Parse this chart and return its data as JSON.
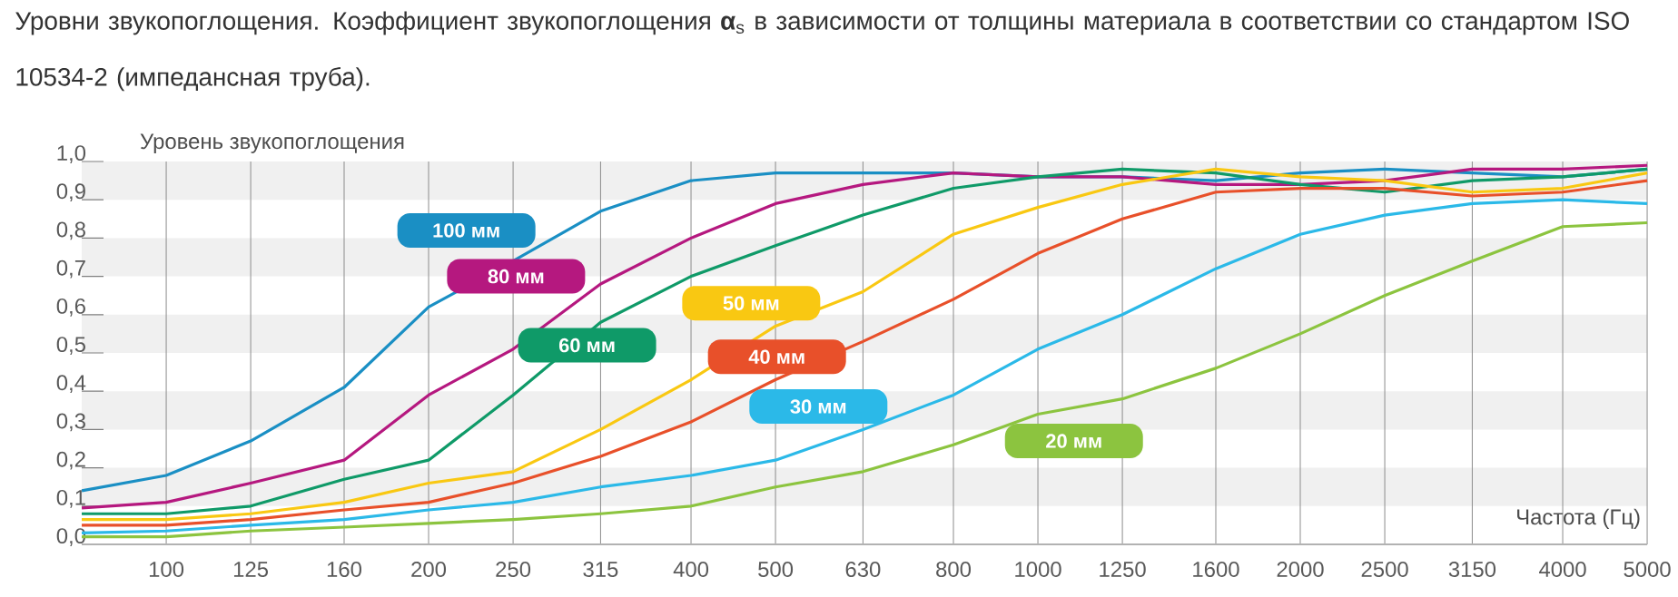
{
  "chart_data": {
    "type": "line",
    "title": "Уровни звукопоглощения. Коэффициент звукопоглощения **α**$_{s}$ в зависимости от толщины материала в соответствии со стандартом ISO 10534-2 (импедансная труба).",
    "xlabel": "Частота (Гц)",
    "ylabel": "Уровень звукопоглощения",
    "log": "x",
    "x": [
      80,
      100,
      125,
      160,
      200,
      250,
      315,
      400,
      500,
      630,
      800,
      1000,
      1250,
      1600,
      2000,
      2500,
      3150,
      4000,
      5000
    ],
    "xlim": [
      80,
      5000
    ],
    "xticks": [
      100,
      125,
      160,
      200,
      250,
      315,
      400,
      500,
      630,
      800,
      1000,
      1250,
      1600,
      2000,
      2500,
      3150,
      4000,
      5000
    ],
    "ylim": [
      0,
      1
    ],
    "yticks": [
      {
        "value": 0,
        "label": "0,0"
      },
      {
        "value": 0.1,
        "label": "0,1"
      },
      {
        "value": 0.2,
        "label": "0,2"
      },
      {
        "value": 0.3,
        "label": "0,3"
      },
      {
        "value": 0.4,
        "label": "0,4"
      },
      {
        "value": 0.5,
        "label": "0,5"
      },
      {
        "value": 0.6,
        "label": "0,6"
      },
      {
        "value": 0.7,
        "label": "0,7"
      },
      {
        "value": 0.8,
        "label": "0,8"
      },
      {
        "value": 0.9,
        "label": "0,9"
      },
      {
        "value": 1.0,
        "label": "1,0"
      }
    ],
    "grid": "x",
    "legend": false,
    "marker": "none",
    "line_style": "solid",
    "bands": [
      {
        "axis": "y",
        "from": 0.1,
        "to": 0.2,
        "color": "#f0f0f0"
      },
      {
        "axis": "y",
        "from": 0.3,
        "to": 0.4,
        "color": "#f0f0f0"
      },
      {
        "axis": "y",
        "from": 0.5,
        "to": 0.6,
        "color": "#f0f0f0"
      },
      {
        "axis": "y",
        "from": 0.7,
        "to": 0.8,
        "color": "#f0f0f0"
      },
      {
        "axis": "y",
        "from": 0.9,
        "to": 1.0,
        "color": "#f0f0f0"
      }
    ],
    "series": [
      {
        "name": "100 мм",
        "color": "#1a8fc4",
        "values": [
          0.14,
          0.18,
          0.27,
          0.41,
          0.62,
          0.74,
          0.87,
          0.95,
          0.97,
          0.97,
          0.97,
          0.96,
          0.96,
          0.95,
          0.97,
          0.98,
          0.97,
          0.96,
          0.98
        ]
      },
      {
        "name": "80 мм",
        "color": "#b5187f",
        "values": [
          0.095,
          0.11,
          0.16,
          0.22,
          0.39,
          0.51,
          0.68,
          0.8,
          0.89,
          0.94,
          0.97,
          0.96,
          0.96,
          0.94,
          0.94,
          0.95,
          0.98,
          0.98,
          0.99
        ]
      },
      {
        "name": "60 мм",
        "color": "#0f9a68",
        "values": [
          0.08,
          0.08,
          0.1,
          0.17,
          0.22,
          0.39,
          0.58,
          0.7,
          0.78,
          0.86,
          0.93,
          0.96,
          0.98,
          0.97,
          0.94,
          0.92,
          0.95,
          0.96,
          0.98
        ]
      },
      {
        "name": "50 мм",
        "color": "#f9c812",
        "values": [
          0.065,
          0.065,
          0.08,
          0.11,
          0.16,
          0.19,
          0.3,
          0.43,
          0.57,
          0.66,
          0.81,
          0.88,
          0.94,
          0.98,
          0.96,
          0.95,
          0.92,
          0.93,
          0.97
        ]
      },
      {
        "name": "40 мм",
        "color": "#e8502a",
        "values": [
          0.05,
          0.05,
          0.065,
          0.09,
          0.11,
          0.16,
          0.23,
          0.32,
          0.43,
          0.53,
          0.64,
          0.76,
          0.85,
          0.92,
          0.93,
          0.93,
          0.91,
          0.92,
          0.95
        ]
      },
      {
        "name": "30 мм",
        "color": "#2bb9e8",
        "values": [
          0.03,
          0.035,
          0.05,
          0.065,
          0.09,
          0.11,
          0.15,
          0.18,
          0.22,
          0.3,
          0.39,
          0.51,
          0.6,
          0.72,
          0.81,
          0.86,
          0.89,
          0.9,
          0.89
        ]
      },
      {
        "name": "20 мм",
        "color": "#8cc43f",
        "values": [
          0.02,
          0.02,
          0.035,
          0.045,
          0.055,
          0.065,
          0.08,
          0.1,
          0.15,
          0.19,
          0.26,
          0.34,
          0.38,
          0.46,
          0.55,
          0.65,
          0.74,
          0.83,
          0.84
        ]
      }
    ]
  }
}
